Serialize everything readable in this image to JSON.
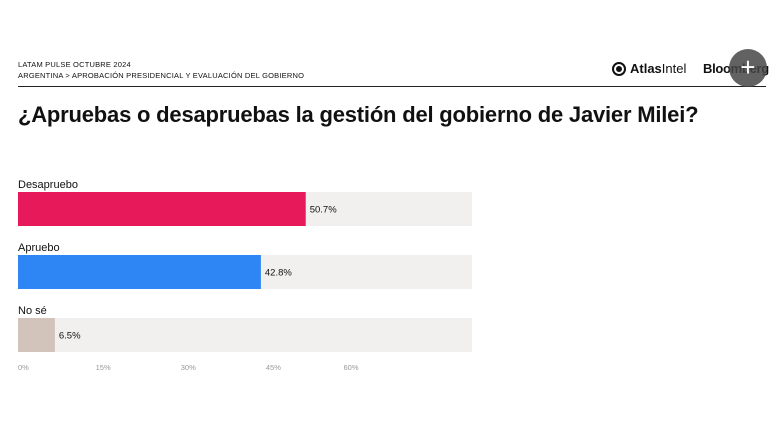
{
  "header": {
    "line1": "LATAM PULSE OCTUBRE 2024",
    "line2": "ARGENTINA > APROBACIÓN PRESIDENCIAL Y EVALUACIÓN DEL GOBIERNO",
    "logo_atlas_bold": "Atlas",
    "logo_atlas_light": "Intel",
    "logo_bloomberg": "Bloomberg",
    "plus_icon": "+"
  },
  "chart_data": {
    "type": "bar",
    "orientation": "horizontal",
    "title": "¿Apruebas o desapruebas la gestión del gobierno de Javier Milei?",
    "categories": [
      "Desapruebo",
      "Apruebo",
      "No sé"
    ],
    "values": [
      50.7,
      42.8,
      6.5
    ],
    "value_labels": [
      "50.7%",
      "42.8%",
      "6.5%"
    ],
    "colors": [
      "#e8195a",
      "#2e86f5",
      "#d2c4bb"
    ],
    "track_color": "#f1f0ee",
    "xlim": [
      0,
      80
    ],
    "ticks": [
      0,
      15,
      30,
      45,
      60
    ],
    "tick_labels": [
      "0%",
      "15%",
      "30%",
      "45%",
      "60%"
    ],
    "xlabel": "",
    "ylabel": ""
  }
}
